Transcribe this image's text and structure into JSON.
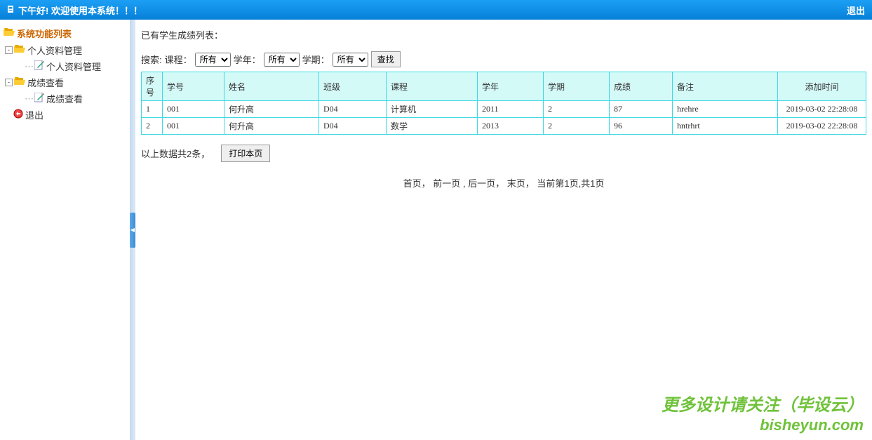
{
  "header": {
    "greeting": "下午好! 欢迎使用本系统！！！",
    "logout": "退出"
  },
  "sidebar": {
    "root": "系统功能列表",
    "groups": [
      {
        "label": "个人资料管理",
        "children": [
          {
            "label": "个人资料管理"
          }
        ]
      },
      {
        "label": "成绩查看",
        "children": [
          {
            "label": "成绩查看"
          }
        ]
      }
    ],
    "logout": "退出"
  },
  "main": {
    "list_title": "已有学生成绩列表：",
    "search": {
      "label": "搜索:",
      "course_label": "课程：",
      "course_selected": "所有",
      "year_label": "学年：",
      "year_selected": "所有",
      "term_label": "学期：",
      "term_selected": "所有",
      "button": "查找"
    },
    "table": {
      "headers": [
        "序号",
        "学号",
        "姓名",
        "班级",
        "课程",
        "学年",
        "学期",
        "成绩",
        "备注",
        "添加时间"
      ],
      "rows": [
        [
          "1",
          "001",
          "何升高",
          "D04",
          "计算机",
          "2011",
          "2",
          "87",
          "hrehre",
          "2019-03-02 22:28:08"
        ],
        [
          "2",
          "001",
          "何升高",
          "D04",
          "数学",
          "2013",
          "2",
          "96",
          "hntrhrt",
          "2019-03-02 22:28:08"
        ]
      ],
      "col_classes": [
        "col-seq",
        "col-id",
        "col-name",
        "col-class",
        "col-course",
        "col-year",
        "col-term",
        "col-score",
        "col-note",
        "col-time"
      ]
    },
    "summary": "以上数据共2条，",
    "print": "打印本页",
    "pagination": {
      "first": "首页",
      "prev": "前一页",
      "next": "后一页",
      "last": "末页",
      "status": "当前第1页,共1页"
    }
  },
  "watermark": {
    "text": "更多设计请关注（毕设云）",
    "url": "bisheyun.com"
  },
  "colors": {
    "header_gradient_top": "#1b9ff5",
    "header_gradient_bottom": "#0780d8",
    "tree_root": "#cc6600",
    "table_border": "#3fd9e6",
    "table_header_bg": "#d4faf8",
    "watermark": "#6fc23a"
  }
}
